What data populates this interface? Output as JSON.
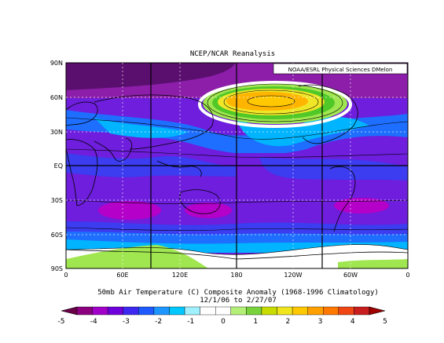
{
  "title": "NCEP/NCAR Reanalysis",
  "credit": "NOAA/ESRL Physical Sciences DMelon",
  "caption": {
    "line1": "50mb Air Temperature (C) Composite Anomaly (1968-1996 Climatology)",
    "line2": "12/1/06  to 2/27/07"
  },
  "axes": {
    "lat_labels": [
      "90N",
      "60N",
      "30N",
      "EQ",
      "30S",
      "60S",
      "90S"
    ],
    "lon_labels": [
      "0",
      "60E",
      "120E",
      "180",
      "120W",
      "60W",
      "0"
    ]
  },
  "colorbar": {
    "ticks": [
      "-5",
      "-4",
      "-3",
      "-2",
      "-1",
      "0",
      "1",
      "2",
      "3",
      "4",
      "5"
    ],
    "colors": [
      "#6a0048",
      "#8c0080",
      "#a000c8",
      "#6e00dc",
      "#3c28f0",
      "#1e5aff",
      "#1e96ff",
      "#00c8ff",
      "#a0f0ff",
      "#ffffff",
      "#ffffff",
      "#b4f078",
      "#78d23c",
      "#c8dc00",
      "#f0e61e",
      "#ffc800",
      "#ffa000",
      "#ff7800",
      "#f04614",
      "#c81e1e",
      "#a00000"
    ]
  },
  "map_colors": {
    "deep_purple": "#5a0f6e",
    "purple": "#8c1eaa",
    "magenta": "#b400c8",
    "violet": "#6e1edc",
    "blue": "#3c3cf0",
    "mid_blue": "#1e6eff",
    "light_blue": "#00b4ff",
    "cyan": "#a0eaff",
    "white": "#ffffff",
    "light_green": "#a0e650",
    "green": "#50c828",
    "yellow": "#f0e628",
    "orange": "#ffb400"
  }
}
